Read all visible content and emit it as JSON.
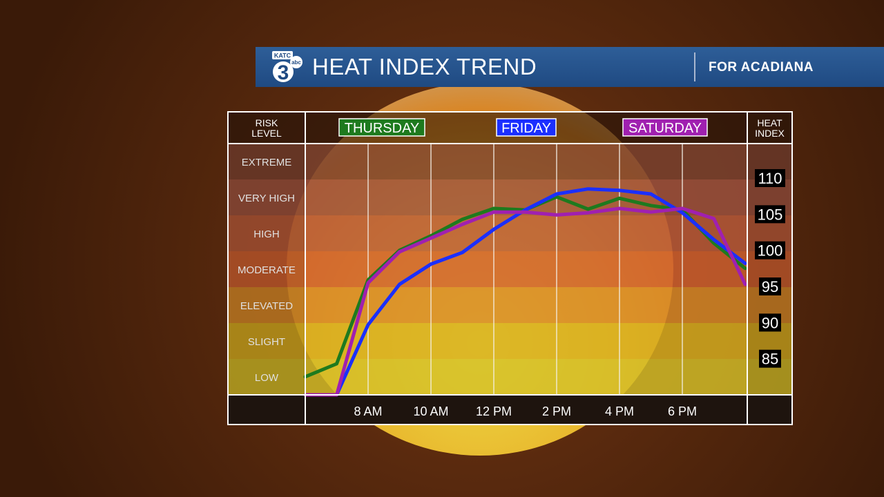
{
  "banner": {
    "logo_text": "KATC",
    "logo_number": "3",
    "logo_network": "abc",
    "title": "HEAT INDEX TREND",
    "subtitle": "FOR ACADIANA"
  },
  "chart_data": {
    "type": "line",
    "left_header": [
      "RISK",
      "LEVEL"
    ],
    "right_header": [
      "HEAT",
      "INDEX"
    ],
    "risk_levels": [
      "EXTREME",
      "VERY HIGH",
      "HIGH",
      "MODERATE",
      "ELEVATED",
      "SLIGHT",
      "LOW"
    ],
    "band_colors": [
      "#7a4230",
      "#9c5240",
      "#b85a3a",
      "#d06030",
      "#d88a28",
      "#d8b020",
      "#d4c028"
    ],
    "x": [
      "6 AM",
      "7 AM",
      "8 AM",
      "9 AM",
      "10 AM",
      "11 AM",
      "12 PM",
      "1 PM",
      "2 PM",
      "3 PM",
      "4 PM",
      "5 PM",
      "6 PM",
      "7 PM",
      "8 PM"
    ],
    "xtick_labels": [
      "8 AM",
      "10 AM",
      "12 PM",
      "2 PM",
      "4 PM",
      "6 PM"
    ],
    "ylim": [
      80,
      114
    ],
    "ytick_labels": [
      110,
      105,
      100,
      95,
      90,
      85
    ],
    "series": [
      {
        "name": "THURSDAY",
        "color": "#1e7a1e",
        "values": [
          82.5,
          84.3,
          95.9,
          100.0,
          102.0,
          104.3,
          105.8,
          105.6,
          107.4,
          105.7,
          107.2,
          106.2,
          105.6,
          101.0,
          97.5
        ]
      },
      {
        "name": "FRIDAY",
        "color": "#1b2fff",
        "values": [
          80.0,
          80.0,
          89.7,
          95.3,
          98.1,
          99.7,
          102.9,
          105.6,
          107.8,
          108.5,
          108.3,
          107.8,
          105.2,
          101.5,
          98.2
        ]
      },
      {
        "name": "SATURDAY",
        "color": "#a020b0",
        "values": [
          80.0,
          80.0,
          95.5,
          99.8,
          101.7,
          103.6,
          105.3,
          105.3,
          104.9,
          105.2,
          105.8,
          105.3,
          105.8,
          104.4,
          95.3
        ]
      }
    ]
  }
}
